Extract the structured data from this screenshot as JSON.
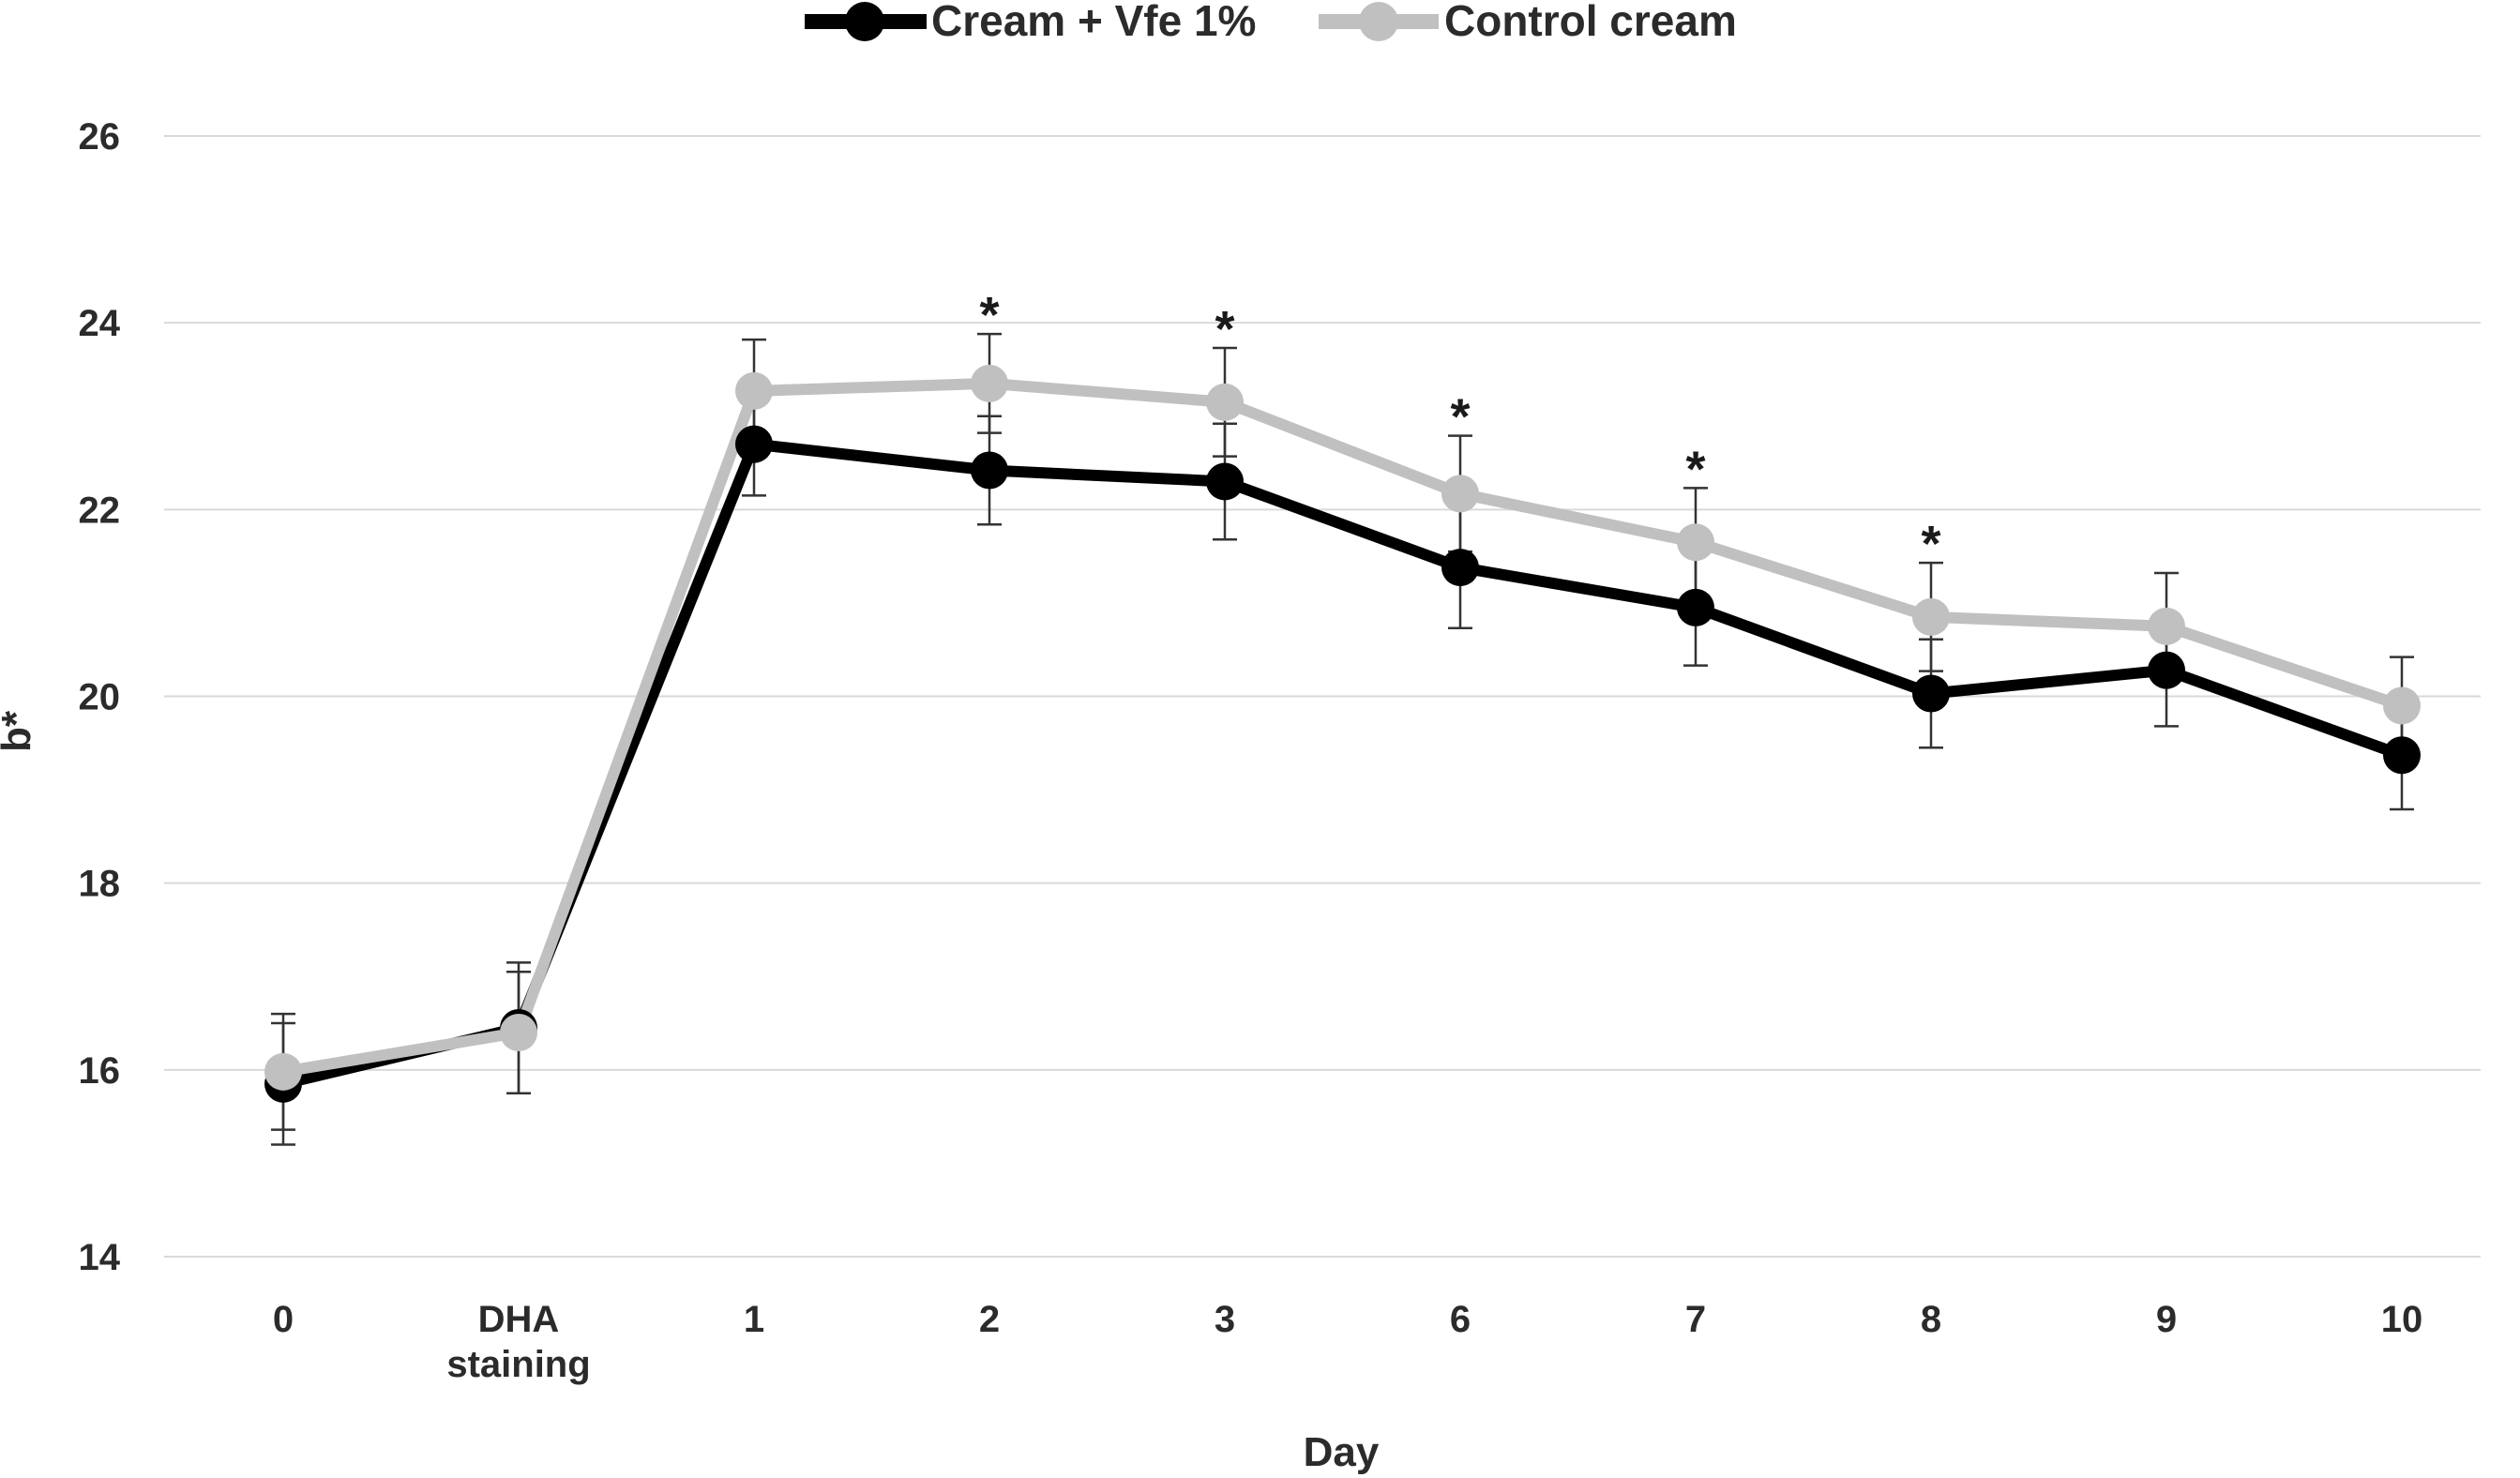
{
  "chart_data": {
    "type": "line",
    "title": "",
    "xlabel": "Day",
    "ylabel": "b*",
    "ylim": [
      14,
      26
    ],
    "yticks": [
      "14",
      "16",
      "18",
      "20",
      "22",
      "24",
      "26"
    ],
    "categories": [
      [
        "0"
      ],
      [
        "DHA",
        "staining"
      ],
      [
        "1"
      ],
      [
        "2"
      ],
      [
        "3"
      ],
      [
        "6"
      ],
      [
        "7"
      ],
      [
        "8"
      ],
      [
        "9"
      ],
      [
        "10"
      ]
    ],
    "grid": true,
    "legend_position": "top-center",
    "series": [
      {
        "name": "Cream + Vfe 1%",
        "color": "#000000",
        "values": [
          15.85,
          16.45,
          22.7,
          22.42,
          22.3,
          21.38,
          20.95,
          20.03,
          20.28,
          19.37
        ],
        "errors": [
          0.65,
          0.7,
          0.55,
          0.58,
          0.62,
          0.65,
          0.62,
          0.58,
          0.6,
          0.58
        ]
      },
      {
        "name": "Control cream",
        "color": "#c0c0c0",
        "values": [
          15.98,
          16.4,
          23.27,
          23.35,
          23.15,
          22.17,
          21.65,
          20.85,
          20.75,
          19.9
        ],
        "errors": [
          0.62,
          0.65,
          0.55,
          0.53,
          0.58,
          0.62,
          0.58,
          0.58,
          0.57,
          0.52
        ]
      }
    ],
    "annotations": [
      {
        "category_index": 3,
        "text": "*"
      },
      {
        "category_index": 4,
        "text": "*"
      },
      {
        "category_index": 5,
        "text": "*"
      },
      {
        "category_index": 6,
        "text": "*"
      },
      {
        "category_index": 7,
        "text": "*"
      }
    ]
  }
}
